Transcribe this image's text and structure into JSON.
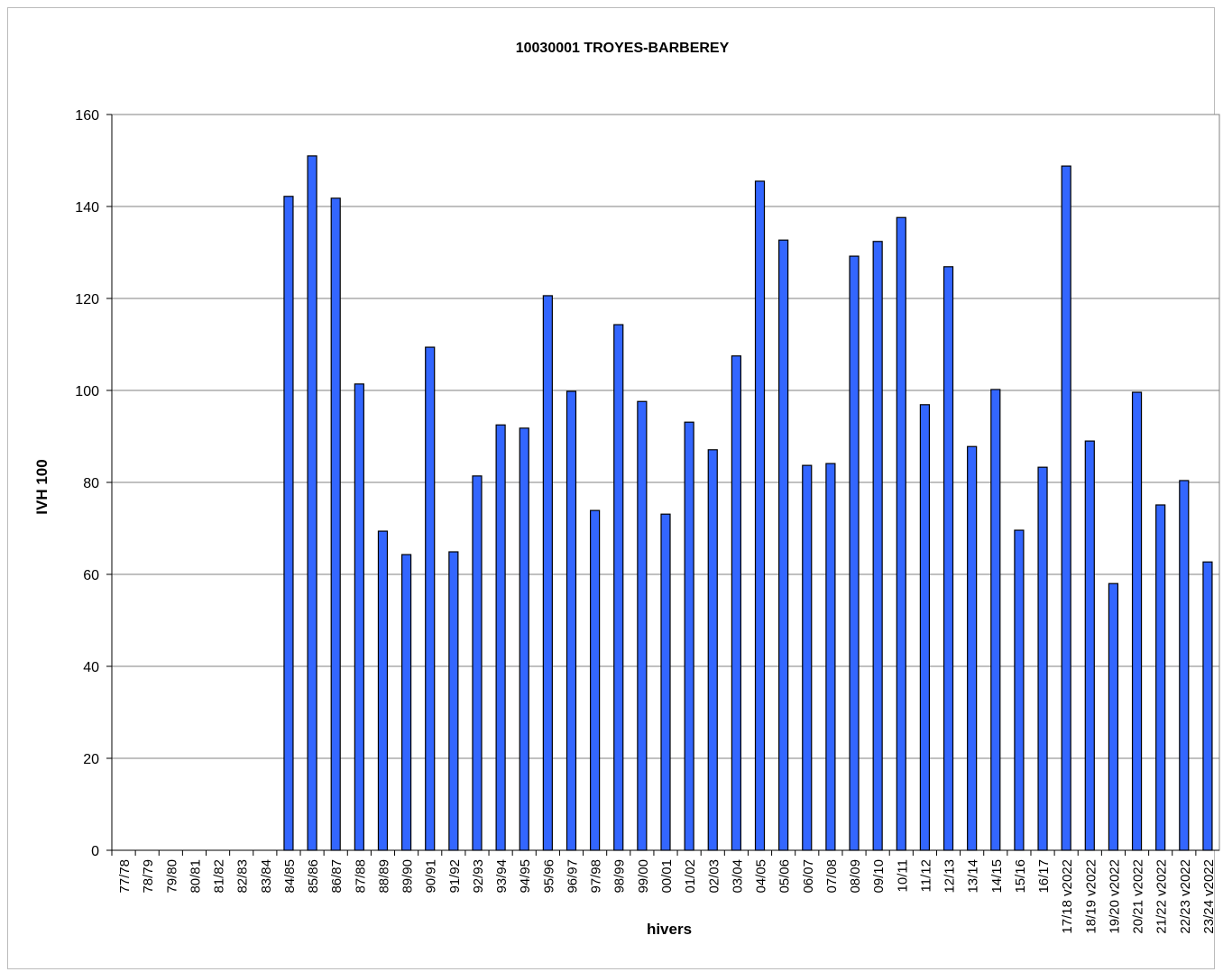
{
  "chart_data": {
    "type": "bar",
    "title": "10030001 TROYES-BARBEREY",
    "x_label": "hivers",
    "y_label": "IVH 100",
    "categories": [
      "77/78",
      "78/79",
      "79/80",
      "80/81",
      "81/82",
      "82/83",
      "83/84",
      "84/85",
      "85/86",
      "86/87",
      "87/88",
      "88/89",
      "89/90",
      "90/91",
      "91/92",
      "92/93",
      "93/94",
      "94/95",
      "95/96",
      "96/97",
      "97/98",
      "98/99",
      "99/00",
      "00/01",
      "01/02",
      "02/03",
      "03/04",
      "04/05",
      "05/06",
      "06/07",
      "07/08",
      "08/09",
      "09/10",
      "10/11",
      "11/12",
      "12/13",
      "13/14",
      "14/15",
      "15/16",
      "16/17",
      "17/18 v2022",
      "18/19 v2022",
      "19/20 v2022",
      "20/21 v2022",
      "21/22 v2022",
      "22/23 v2022",
      "23/24 v2022"
    ],
    "values": [
      null,
      null,
      null,
      null,
      null,
      null,
      null,
      142.2,
      151,
      141.8,
      101.4,
      69.4,
      64.3,
      109.4,
      64.9,
      81.4,
      92.5,
      91.8,
      120.6,
      99.8,
      73.9,
      114.3,
      97.6,
      73.1,
      93.1,
      87.1,
      107.5,
      145.5,
      132.7,
      83.7,
      84.1,
      129.2,
      132.4,
      137.6,
      96.9,
      126.9,
      87.8,
      100.2,
      69.6,
      83.3,
      148.8,
      89,
      58,
      99.6,
      75.1,
      80.4,
      62.7
    ],
    "color": "#3366ff",
    "ylim": [
      0,
      160
    ],
    "yticks": [
      0,
      20,
      40,
      60,
      80,
      100,
      120,
      140,
      160
    ],
    "grid": true
  }
}
